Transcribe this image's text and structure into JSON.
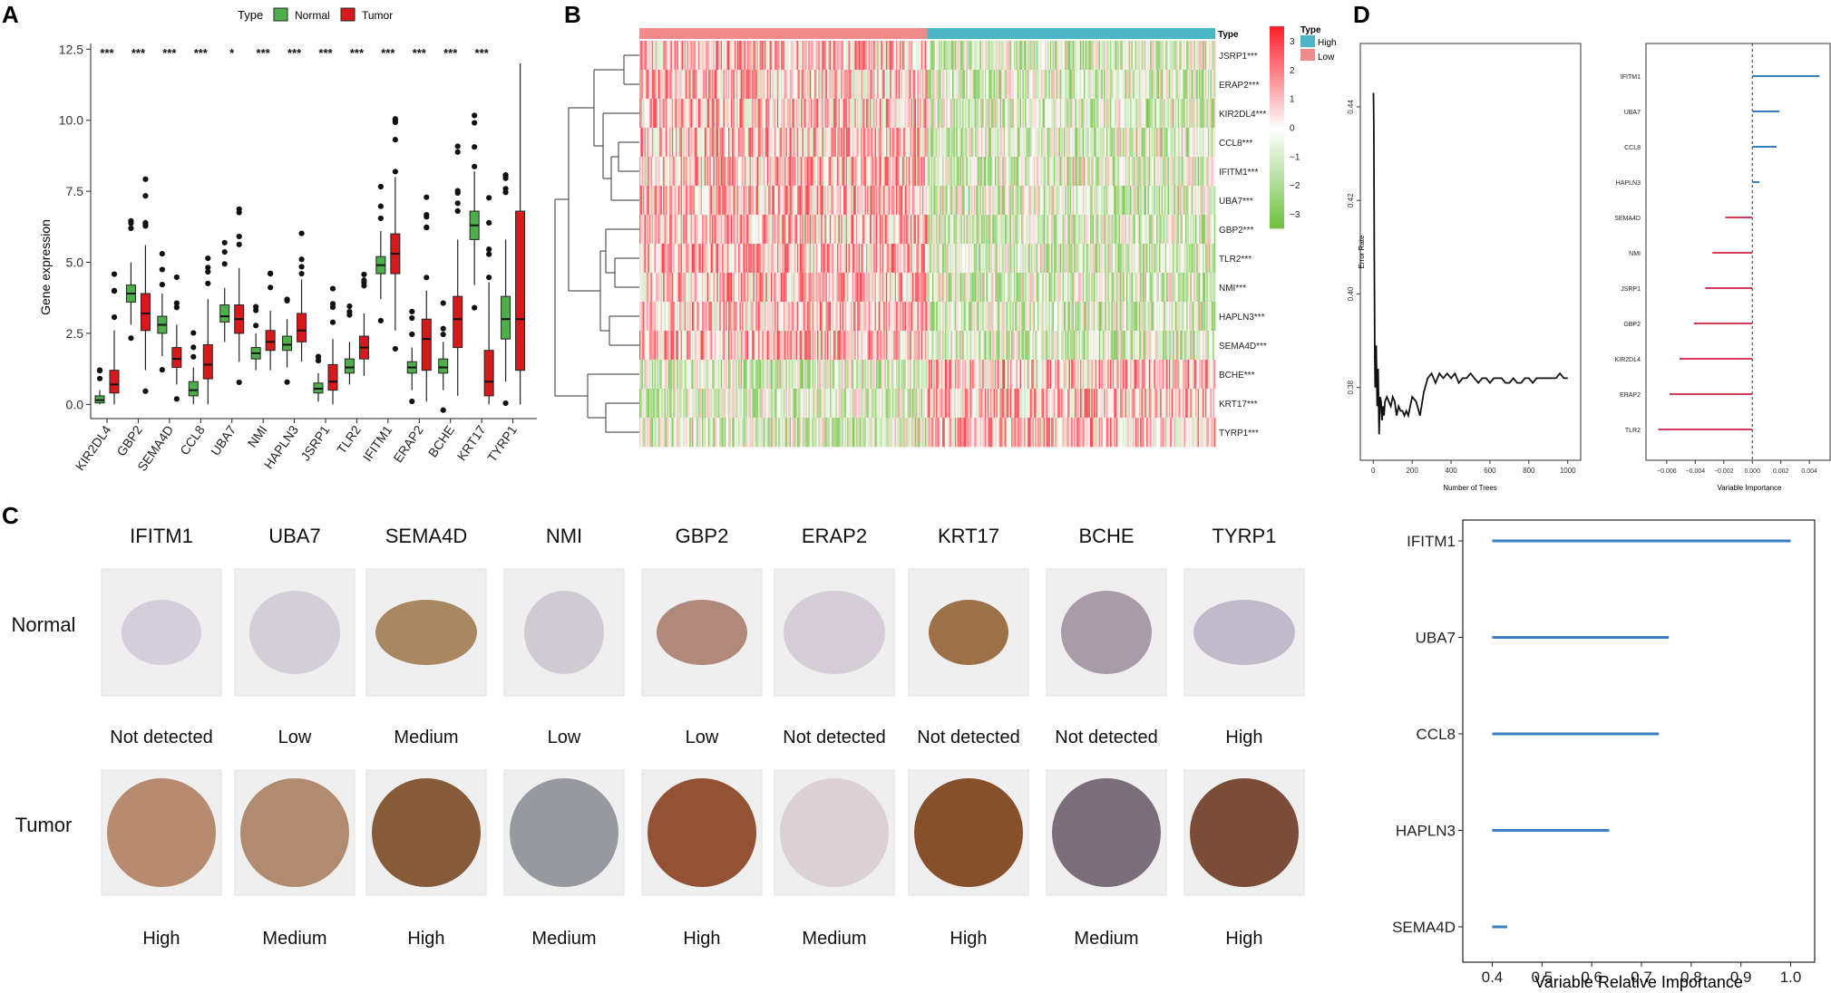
{
  "panel_labels": [
    "A",
    "B",
    "C",
    "D"
  ],
  "colors": {
    "normal": "#4DAF4A",
    "tumor": "#D7191C",
    "high": "#4BB6C6",
    "low": "#F08B8B",
    "heat_hi": "#E8212B",
    "heat_lo": "#6BBF3A",
    "imp_pos": "#3A7FC2",
    "imp_neg": "#D63A5A",
    "rel_imp": "#3A7FC2"
  },
  "chart_data": [
    {
      "id": "A",
      "type": "boxplot",
      "legend_title": "Type",
      "legend": [
        "Normal",
        "Tumor"
      ],
      "ylabel": "Gene expression",
      "ylim": [
        -0.5,
        12.7
      ],
      "yticks": [
        "0.0",
        "2.5",
        "5.0",
        "7.5",
        "10.0",
        "12.5"
      ],
      "ytick_values": [
        0,
        2.5,
        5,
        7.5,
        10,
        12.5
      ],
      "categories": [
        "KIR2DL4",
        "GBP2",
        "SEMA4D",
        "CCL8",
        "UBA7",
        "NMI",
        "HAPLN3",
        "JSRP1",
        "TLR2",
        "IFITM1",
        "ERAP2",
        "BCHE",
        "KRT17",
        "TYRP1"
      ],
      "significance": [
        "***",
        "***",
        "***",
        "***",
        "*",
        "***",
        "***",
        "***",
        "***",
        "***",
        "***",
        "***",
        "***",
        ""
      ],
      "series": [
        {
          "name": "Normal",
          "boxes": [
            [
              0.0,
              0.05,
              0.15,
              0.3,
              0.5
            ],
            [
              2.8,
              3.6,
              3.9,
              4.2,
              5.0
            ],
            [
              1.7,
              2.5,
              2.8,
              3.1,
              3.9
            ],
            [
              0.0,
              0.3,
              0.5,
              0.8,
              1.3
            ],
            [
              2.2,
              2.9,
              3.1,
              3.5,
              4.1
            ],
            [
              1.2,
              1.6,
              1.8,
              2.0,
              2.5
            ],
            [
              1.3,
              1.9,
              2.1,
              2.4,
              3.0
            ],
            [
              0.1,
              0.4,
              0.55,
              0.75,
              1.1
            ],
            [
              0.7,
              1.1,
              1.3,
              1.6,
              2.2
            ],
            [
              3.7,
              4.6,
              4.9,
              5.2,
              6.1
            ],
            [
              0.5,
              1.1,
              1.3,
              1.5,
              2.0
            ],
            [
              0.5,
              1.1,
              1.3,
              1.6,
              2.2
            ],
            [
              4.2,
              5.8,
              6.3,
              6.8,
              8.2
            ],
            [
              0.8,
              2.3,
              3.0,
              3.8,
              5.8
            ]
          ]
        },
        {
          "name": "Tumor",
          "boxes": [
            [
              0.0,
              0.4,
              0.7,
              1.2,
              2.6
            ],
            [
              1.2,
              2.6,
              3.2,
              3.9,
              5.6
            ],
            [
              0.7,
              1.3,
              1.6,
              2.0,
              2.8
            ],
            [
              0.0,
              0.9,
              1.4,
              2.1,
              3.7
            ],
            [
              1.5,
              2.5,
              3.0,
              3.5,
              4.8
            ],
            [
              1.2,
              1.9,
              2.2,
              2.6,
              3.3
            ],
            [
              1.5,
              2.2,
              2.6,
              3.2,
              4.4
            ],
            [
              0.0,
              0.5,
              0.8,
              1.4,
              2.3
            ],
            [
              1.0,
              1.6,
              2.0,
              2.4,
              3.2
            ],
            [
              2.6,
              4.6,
              5.3,
              6.0,
              8.0
            ],
            [
              0.1,
              1.2,
              2.3,
              3.0,
              4.0
            ],
            [
              0.3,
              2.0,
              3.0,
              3.8,
              5.8
            ],
            [
              0.0,
              0.3,
              0.8,
              1.9,
              4.3
            ],
            [
              0.0,
              1.2,
              3.0,
              6.8,
              12.0
            ]
          ]
        }
      ]
    },
    {
      "id": "B",
      "type": "heatmap",
      "annotation_label": "Type",
      "legend_title": "Type",
      "legend": [
        "High",
        "Low"
      ],
      "rows": [
        "JSRP1***",
        "ERAP2***",
        "KIR2DL4***",
        "CCL8***",
        "IFITM1***",
        "UBA7***",
        "GBP2***",
        "TLR2***",
        "NMI***",
        "HAPLN3***",
        "SEMA4D***",
        "BCHE***",
        "KRT17***",
        "TYRP1***"
      ],
      "row_trend_low_group": [
        1,
        1,
        1,
        1,
        1,
        1,
        1,
        1,
        1,
        1,
        1,
        -1,
        -1,
        -1
      ],
      "scale_ticks": [
        "3",
        "2",
        "1",
        "0",
        "−1",
        "−2",
        "−3"
      ],
      "scale_range": [
        -3.5,
        3.5
      ]
    },
    {
      "id": "D1",
      "type": "line",
      "xlabel": "Number of Trees",
      "ylabel": "Error Rate",
      "xticks": [
        "0",
        "200",
        "400",
        "600",
        "800",
        "1000"
      ],
      "xtick_values": [
        0,
        200,
        400,
        600,
        800,
        1000
      ],
      "yticks": [
        "0.38",
        "0.40",
        "0.42",
        "0.44"
      ],
      "ytick_values": [
        0.38,
        0.4,
        0.42,
        0.44
      ],
      "xlim": [
        -20,
        1020
      ],
      "ylim": [
        0.366,
        0.452
      ],
      "x": [
        1,
        3,
        5,
        8,
        10,
        15,
        20,
        25,
        30,
        35,
        40,
        45,
        50,
        55,
        60,
        70,
        80,
        90,
        100,
        110,
        120,
        130,
        140,
        150,
        160,
        170,
        180,
        190,
        200,
        220,
        240,
        260,
        280,
        300,
        320,
        340,
        360,
        380,
        400,
        420,
        440,
        460,
        480,
        500,
        520,
        540,
        560,
        580,
        600,
        620,
        640,
        660,
        680,
        700,
        720,
        740,
        760,
        780,
        800,
        820,
        840,
        860,
        880,
        900,
        920,
        940,
        960,
        980,
        1000
      ],
      "y": [
        0.443,
        0.436,
        0.408,
        0.386,
        0.38,
        0.389,
        0.376,
        0.384,
        0.37,
        0.378,
        0.377,
        0.373,
        0.376,
        0.374,
        0.377,
        0.378,
        0.377,
        0.376,
        0.378,
        0.377,
        0.374,
        0.376,
        0.375,
        0.375,
        0.374,
        0.375,
        0.374,
        0.376,
        0.378,
        0.377,
        0.374,
        0.379,
        0.382,
        0.383,
        0.381,
        0.383,
        0.382,
        0.383,
        0.382,
        0.383,
        0.381,
        0.382,
        0.382,
        0.383,
        0.382,
        0.381,
        0.382,
        0.382,
        0.381,
        0.382,
        0.382,
        0.382,
        0.381,
        0.381,
        0.382,
        0.381,
        0.381,
        0.382,
        0.382,
        0.381,
        0.382,
        0.382,
        0.382,
        0.382,
        0.382,
        0.382,
        0.383,
        0.382,
        0.382
      ]
    },
    {
      "id": "D2",
      "type": "lollipop",
      "xlabel": "Variable Importance",
      "categories": [
        "IFITM1",
        "UBA7",
        "CCL8",
        "HAPLN3",
        "SEMA4D",
        "NMI",
        "JSRP1",
        "GBP2",
        "KIR2DL4",
        "ERAP2",
        "TLR2"
      ],
      "values": [
        0.0047,
        0.0019,
        0.0017,
        0.0005,
        -0.0019,
        -0.0028,
        -0.0033,
        -0.0041,
        -0.0051,
        -0.0058,
        -0.0066
      ],
      "xticks": [
        "−0.006",
        "−0.004",
        "−0.002",
        "0.000",
        "0.002",
        "0.004"
      ],
      "xtick_values": [
        -0.006,
        -0.004,
        -0.002,
        0,
        0.002,
        0.004
      ],
      "xlim": [
        -0.0072,
        0.0052
      ]
    },
    {
      "id": "D3",
      "type": "lollipop",
      "xlabel": "Variable Relative Importance",
      "categories": [
        "IFITM1",
        "UBA7",
        "CCL8",
        "HAPLN3",
        "SEMA4D"
      ],
      "values": [
        1.0,
        0.755,
        0.735,
        0.635,
        0.43
      ],
      "baseline": 0.4,
      "xticks": [
        "0.4",
        "0.5",
        "0.6",
        "0.7",
        "0.8",
        "0.9",
        "1.0"
      ],
      "xtick_values": [
        0.4,
        0.5,
        0.6,
        0.7,
        0.8,
        0.9,
        1.0
      ],
      "xlim": [
        0.37,
        1.03
      ]
    }
  ],
  "panel_c": {
    "genes": [
      "IFITM1",
      "UBA7",
      "SEMA4D",
      "NMI",
      "GBP2",
      "ERAP2",
      "KRT17",
      "BCHE",
      "TYRP1"
    ],
    "row_labels": [
      "Normal",
      "Tumor"
    ],
    "normal_levels": [
      "Not detected",
      "Low",
      "Medium",
      "Low",
      "Low",
      "Not detected",
      "Not detected",
      "Not detected",
      "High"
    ],
    "tumor_levels": [
      "High",
      "Medium",
      "High",
      "Medium",
      "High",
      "Medium",
      "High",
      "Medium",
      "High"
    ]
  }
}
